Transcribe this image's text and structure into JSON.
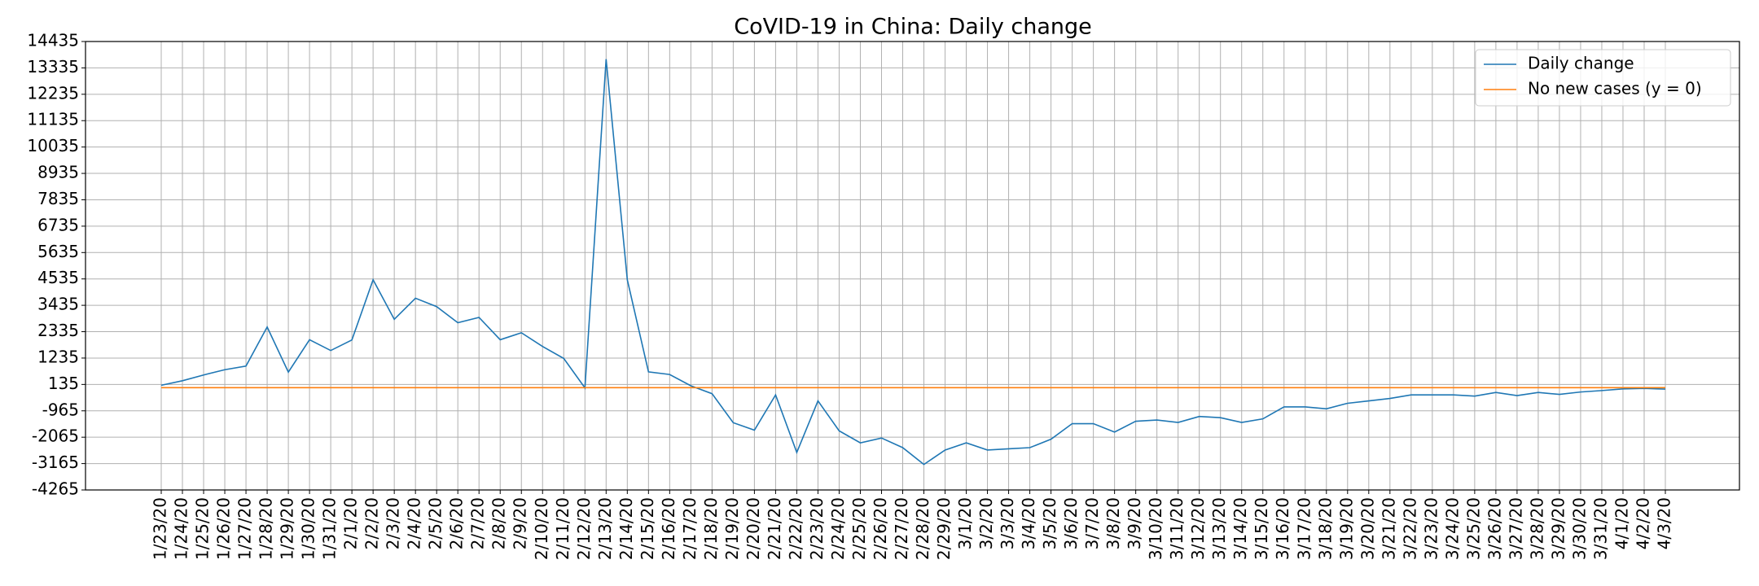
{
  "chart_data": {
    "type": "line",
    "title": "CoVID-19 in China: Daily change",
    "categories": [
      "1/23/20",
      "1/24/20",
      "1/25/20",
      "1/26/20",
      "1/27/20",
      "1/28/20",
      "1/29/20",
      "1/30/20",
      "1/31/20",
      "2/1/20",
      "2/2/20",
      "2/3/20",
      "2/4/20",
      "2/5/20",
      "2/6/20",
      "2/7/20",
      "2/8/20",
      "2/9/20",
      "2/10/20",
      "2/11/20",
      "2/12/20",
      "2/13/20",
      "2/14/20",
      "2/15/20",
      "2/16/20",
      "2/17/20",
      "2/18/20",
      "2/19/20",
      "2/20/20",
      "2/21/20",
      "2/22/20",
      "2/23/20",
      "2/24/20",
      "2/25/20",
      "2/26/20",
      "2/27/20",
      "2/28/20",
      "2/29/20",
      "3/1/20",
      "3/2/20",
      "3/3/20",
      "3/4/20",
      "3/5/20",
      "3/6/20",
      "3/7/20",
      "3/8/20",
      "3/9/20",
      "3/10/20",
      "3/11/20",
      "3/12/20",
      "3/13/20",
      "3/14/20",
      "3/15/20",
      "3/16/20",
      "3/17/20",
      "3/18/20",
      "3/19/20",
      "3/20/20",
      "3/21/20",
      "3/22/20",
      "3/23/20",
      "3/24/20",
      "3/25/20",
      "3/26/20",
      "3/27/20",
      "3/28/20",
      "3/29/20",
      "3/30/20",
      "3/31/20",
      "4/1/20",
      "4/2/20",
      "4/3/20"
    ],
    "series": [
      {
        "name": "Daily change",
        "color": "#1f77b4",
        "values": [
          100,
          290,
          530,
          750,
          900,
          2530,
          650,
          2000,
          1550,
          1990,
          4500,
          2850,
          3730,
          3380,
          2710,
          2930,
          2000,
          2290,
          1720,
          1220,
          -10,
          13700,
          4500,
          660,
          550,
          80,
          -250,
          -1460,
          -1770,
          -300,
          -2700,
          -550,
          -1800,
          -2300,
          -2100,
          -2500,
          -3200,
          -2600,
          -2300,
          -2600,
          -2550,
          -2500,
          -2150,
          -1500,
          -1500,
          -1850,
          -1400,
          -1350,
          -1450,
          -1200,
          -1250,
          -1450,
          -1300,
          -800,
          -800,
          -880,
          -650,
          -550,
          -450,
          -300,
          -300,
          -300,
          -350,
          -200,
          -330,
          -200,
          -280,
          -180,
          -120,
          -50,
          -30,
          -60
        ]
      },
      {
        "name": "No new cases (y = 0)",
        "color": "#ff7f0e",
        "values": [
          0,
          0,
          0,
          0,
          0,
          0,
          0,
          0,
          0,
          0,
          0,
          0,
          0,
          0,
          0,
          0,
          0,
          0,
          0,
          0,
          0,
          0,
          0,
          0,
          0,
          0,
          0,
          0,
          0,
          0,
          0,
          0,
          0,
          0,
          0,
          0,
          0,
          0,
          0,
          0,
          0,
          0,
          0,
          0,
          0,
          0,
          0,
          0,
          0,
          0,
          0,
          0,
          0,
          0,
          0,
          0,
          0,
          0,
          0,
          0,
          0,
          0,
          0,
          0,
          0,
          0,
          0,
          0,
          0,
          0,
          0,
          0
        ]
      }
    ],
    "ylim": [
      -4265,
      14435
    ],
    "yticks": [
      -4265,
      -3165,
      -2065,
      -965,
      135,
      1235,
      2335,
      3435,
      4535,
      5635,
      6735,
      7835,
      8935,
      10035,
      11135,
      12235,
      13335,
      14435
    ],
    "grid": true,
    "legend": "upper right"
  }
}
